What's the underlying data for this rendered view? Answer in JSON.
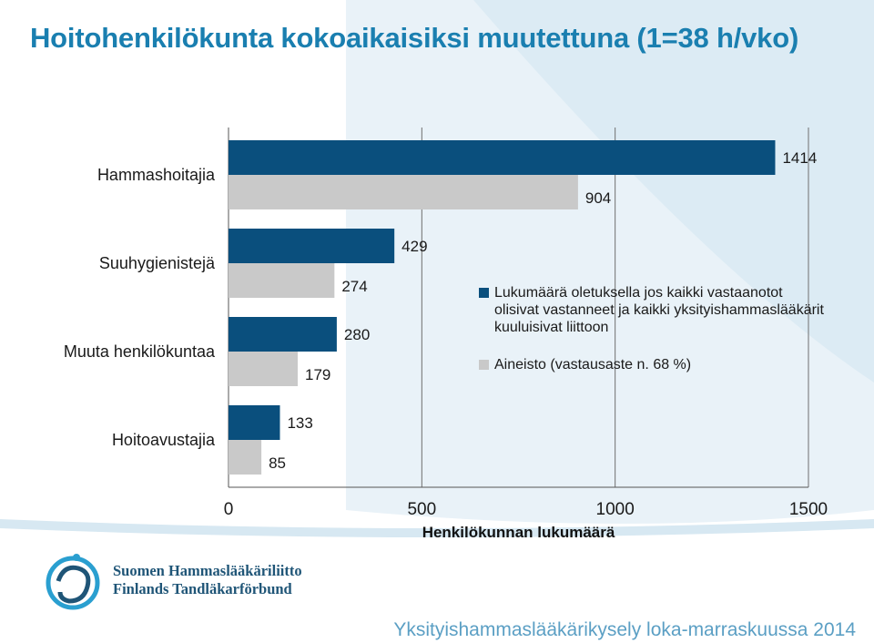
{
  "page": {
    "title": "Hoitohenkilökunta kokoaikaisiksi muutettuna (1=38 h/vko)",
    "footer": "Yksityishammaslääkärikysely loka-marraskuussa 2014"
  },
  "logo": {
    "line1": "Suomen Hammaslääkäriliitto",
    "line2": "Finlands Tandläkarförbund"
  },
  "colors": {
    "series1": "#0a4f7d",
    "series2": "#c9c9c9",
    "title": "#1a7fb0",
    "footer": "#5b9fc4"
  },
  "chart_data": {
    "type": "bar",
    "orientation": "horizontal",
    "categories": [
      "Hammashoitajia",
      "Suuhygienistejä",
      "Muuta henkilökuntaa",
      "Hoitoavustajia"
    ],
    "series": [
      {
        "name": "Lukumäärä oletuksella jos kaikki vastaanotot olisivat vastanneet ja kaikki yksityishammaslääkärit kuuluisivat liittoon",
        "values": [
          1414,
          429,
          280,
          133
        ]
      },
      {
        "name": "Aineisto (vastausaste n. 68 %)",
        "values": [
          904,
          274,
          179,
          85
        ]
      }
    ],
    "xlabel": "Henkilökunnan lukumäärä",
    "xlim": [
      0,
      1500
    ],
    "xticks": [
      0,
      500,
      1000,
      1500
    ],
    "legend_position": "right-middle"
  }
}
